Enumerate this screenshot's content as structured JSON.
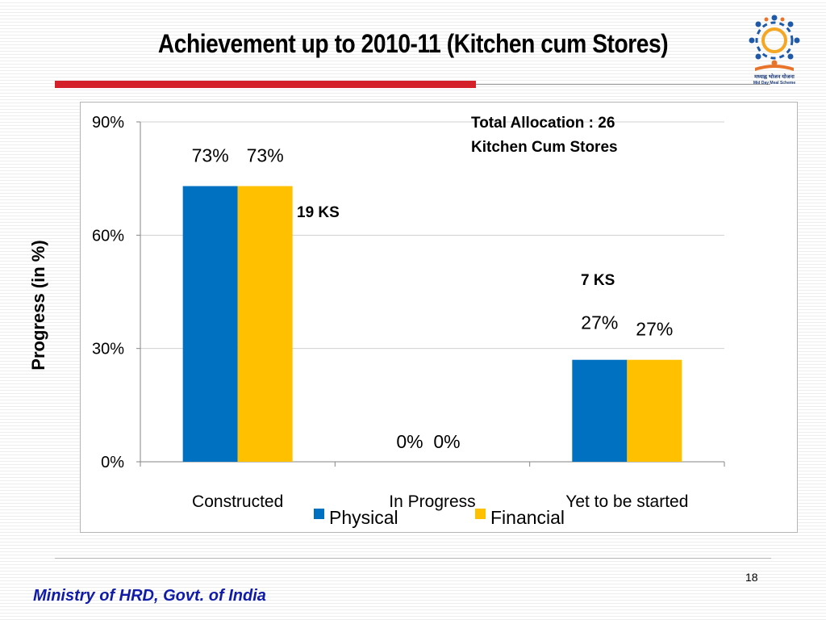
{
  "slide": {
    "title": "Achievement up to 2010-11 (Kitchen cum Stores)",
    "page_number": "18",
    "footer": "Ministry of HRD, Govt. of India",
    "logo_text_line1": "मध्याह्न भोजन योजना",
    "logo_text_line2": "Mid Day Meal Scheme"
  },
  "chart_data": {
    "type": "bar",
    "categories": [
      "Constructed",
      "In Progress",
      "Yet to be started"
    ],
    "series": [
      {
        "name": "Physical",
        "values": [
          73,
          0,
          27
        ],
        "labels": [
          "73%",
          "0%",
          "27%"
        ],
        "color": "#0070c0"
      },
      {
        "name": "Financial",
        "values": [
          73,
          0,
          27
        ],
        "labels": [
          "73%",
          "0%",
          "27%"
        ],
        "color": "#ffc000"
      }
    ],
    "ylabel": "Progress (in %)",
    "ylim": [
      0,
      90
    ],
    "yticks": [
      0,
      30,
      60,
      90
    ],
    "ytick_labels": [
      "0%",
      "30%",
      "60%",
      "90%"
    ],
    "grid": true,
    "legend_position": "bottom",
    "annotations": {
      "total": [
        "Total Allocation : 26",
        "Kitchen Cum Stores"
      ],
      "constructed_count": "19 KS",
      "yet_count": "7 KS"
    }
  }
}
